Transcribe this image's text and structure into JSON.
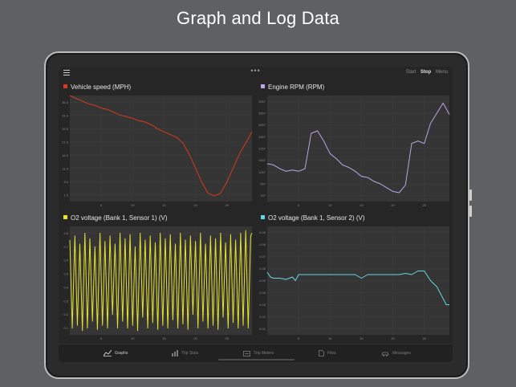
{
  "headline": "Graph and Log Data",
  "topbar": {
    "menu_icon": "hamburger-icon",
    "more_icon": "ellipsis-icon",
    "start_label": "Start",
    "stop_label": "Stop",
    "menu_label": "Menu"
  },
  "panels": [
    {
      "title": "Vehicle speed (MPH)",
      "color": "#d73a1e",
      "chart_data": {
        "type": "line",
        "title": "Vehicle speed (MPH)",
        "xticks": [
          "5",
          "10",
          "15",
          "20",
          "25"
        ],
        "yticks": [
          "1.5",
          "6.0",
          "11.0",
          "16.5",
          "21.0",
          "26.5",
          "31.0",
          "36.5"
        ],
        "xlim": [
          0,
          29
        ],
        "ylim": [
          0,
          38
        ],
        "x": [
          0,
          1,
          2,
          3,
          4,
          5,
          6,
          7,
          8,
          9,
          10,
          11,
          12,
          13,
          14,
          15,
          16,
          17,
          18,
          19,
          20,
          21,
          22,
          23,
          24,
          25,
          26,
          27,
          28,
          29
        ],
        "values": [
          38,
          37,
          36,
          35,
          34.5,
          33.5,
          33,
          32,
          31,
          30.5,
          29.8,
          29,
          28.5,
          27.5,
          26,
          25,
          24,
          23,
          21,
          17,
          12,
          7,
          3,
          2,
          3,
          7,
          12,
          17,
          21,
          25
        ]
      }
    },
    {
      "title": "Engine RPM (RPM)",
      "color": "#b8a6e6",
      "chart_data": {
        "type": "line",
        "title": "Engine RPM (RPM)",
        "xticks": [
          "5",
          "10",
          "15",
          "20",
          "25"
        ],
        "yticks": [
          "337",
          "657",
          "1257",
          "1657",
          "2257",
          "2657",
          "3257",
          "3557",
          "3957"
        ],
        "xlim": [
          0,
          29
        ],
        "ylim": [
          0,
          4200
        ],
        "x": [
          0,
          1,
          2,
          3,
          4,
          5,
          6,
          7,
          8,
          9,
          10,
          11,
          12,
          13,
          14,
          15,
          16,
          17,
          18,
          19,
          20,
          21,
          22,
          23,
          24,
          25,
          26,
          27,
          28,
          29
        ],
        "values": [
          1500,
          1450,
          1300,
          1200,
          1250,
          1200,
          1300,
          2700,
          2800,
          2400,
          1900,
          1700,
          1450,
          1350,
          1200,
          1000,
          950,
          800,
          700,
          550,
          400,
          350,
          650,
          2300,
          2400,
          2300,
          3100,
          3500,
          3900,
          3450
        ]
      }
    },
    {
      "title": "O2 voltage (Bank 1, Sensor 1) (V)",
      "color": "#e8e22a",
      "chart_data": {
        "type": "line",
        "title": "O2 voltage (Bank 1, Sensor 1) (V)",
        "xticks": [
          "5",
          "10",
          "15",
          "20",
          "25"
        ],
        "yticks": [
          "0.1",
          "0.2",
          "0.3",
          "0.4",
          "0.5",
          "0.6",
          "0.7",
          "0.8"
        ],
        "xlim": [
          0,
          29
        ],
        "ylim": [
          0.05,
          0.85
        ],
        "x": [
          0,
          0.4,
          0.8,
          1.2,
          1.6,
          2.0,
          2.4,
          2.8,
          3.2,
          3.6,
          4.0,
          4.4,
          4.8,
          5.2,
          5.6,
          6.0,
          6.4,
          6.8,
          7.2,
          7.6,
          8.0,
          8.4,
          8.8,
          9.2,
          9.6,
          10.0,
          10.4,
          10.8,
          11.2,
          11.6,
          12.0,
          12.4,
          12.8,
          13.2,
          13.6,
          14.0,
          14.4,
          14.8,
          15.2,
          15.6,
          16.0,
          16.4,
          16.8,
          17.2,
          17.6,
          18.0,
          18.4,
          18.8,
          19.2,
          19.6,
          20.0,
          20.4,
          20.8,
          21.2,
          21.6,
          22.0,
          22.4,
          22.8,
          23.2,
          23.6,
          24.0,
          24.4,
          24.8,
          25.2,
          25.6,
          26.0,
          26.4,
          26.8,
          27.2,
          27.6,
          28.0,
          28.4,
          28.8,
          29.0
        ],
        "values": [
          0.75,
          0.1,
          0.78,
          0.12,
          0.72,
          0.08,
          0.8,
          0.1,
          0.76,
          0.15,
          0.7,
          0.09,
          0.8,
          0.12,
          0.74,
          0.1,
          0.78,
          0.2,
          0.72,
          0.1,
          0.8,
          0.15,
          0.76,
          0.1,
          0.79,
          0.12,
          0.7,
          0.08,
          0.8,
          0.18,
          0.75,
          0.1,
          0.78,
          0.14,
          0.73,
          0.09,
          0.8,
          0.12,
          0.76,
          0.1,
          0.79,
          0.16,
          0.72,
          0.1,
          0.8,
          0.13,
          0.75,
          0.09,
          0.78,
          0.2,
          0.74,
          0.1,
          0.8,
          0.15,
          0.72,
          0.1,
          0.78,
          0.12,
          0.76,
          0.09,
          0.8,
          0.18,
          0.73,
          0.1,
          0.79,
          0.14,
          0.75,
          0.1,
          0.8,
          0.12,
          0.82,
          0.1,
          0.78,
          0.8
        ]
      }
    },
    {
      "title": "O2 voltage (Bank 1, Sensor 2) (V)",
      "color": "#63d6e3",
      "chart_data": {
        "type": "line",
        "title": "O2 voltage (Bank 1, Sensor 2) (V)",
        "xticks": [
          "5",
          "10",
          "15",
          "20",
          "25"
        ],
        "yticks": [
          "0.01",
          "0.02",
          "0.03",
          "0.04",
          "0.05",
          "0.06",
          "0.07",
          "0.08",
          "0.09"
        ],
        "xlim": [
          0,
          29
        ],
        "ylim": [
          0.005,
          0.095
        ],
        "x": [
          0,
          0.5,
          1,
          2,
          3,
          4,
          4.5,
          5,
          6,
          7,
          8,
          9,
          10,
          11,
          12,
          13,
          14,
          15,
          16,
          17,
          18,
          19,
          20,
          21,
          22,
          23,
          24,
          25,
          26,
          27,
          28,
          28.5,
          29
        ],
        "values": [
          0.057,
          0.053,
          0.052,
          0.052,
          0.051,
          0.053,
          0.05,
          0.055,
          0.055,
          0.055,
          0.055,
          0.055,
          0.055,
          0.055,
          0.055,
          0.055,
          0.055,
          0.052,
          0.055,
          0.055,
          0.055,
          0.055,
          0.055,
          0.055,
          0.056,
          0.055,
          0.058,
          0.058,
          0.05,
          0.045,
          0.035,
          0.03,
          0.03
        ]
      }
    }
  ],
  "tabs": [
    {
      "label": "Graphs",
      "icon": "graph-icon",
      "active": true
    },
    {
      "label": "Trip Stats",
      "icon": "bar-chart-icon",
      "active": false
    },
    {
      "label": "Trip Meters",
      "icon": "trip-meter-icon",
      "active": false
    },
    {
      "label": "Files",
      "icon": "file-icon",
      "active": false
    },
    {
      "label": "Messages",
      "icon": "car-icon",
      "active": false
    }
  ]
}
